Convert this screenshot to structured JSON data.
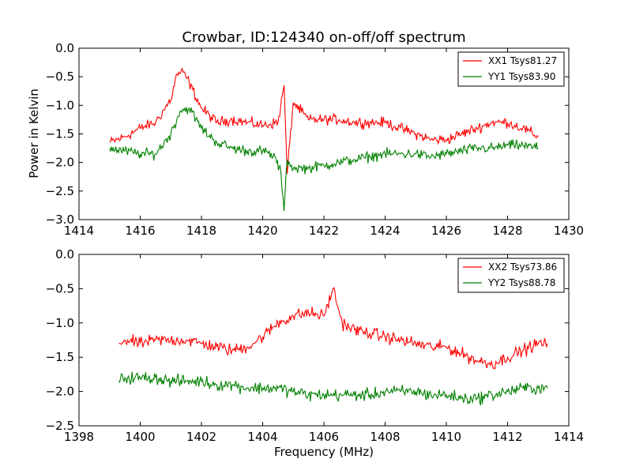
{
  "chart_data": [
    {
      "type": "line",
      "title": "Crowbar, ID:124340 on-off/off spectrum",
      "xlabel": "",
      "ylabel": "Power in Kelvin",
      "xlim": [
        1414,
        1430
      ],
      "ylim": [
        -3.0,
        0.0
      ],
      "x_ticks": [
        "1414",
        "1416",
        "1418",
        "1420",
        "1422",
        "1424",
        "1426",
        "1428",
        "1430"
      ],
      "y_ticks": [
        "0.0",
        "−0.5",
        "−1.0",
        "−1.5",
        "−2.0",
        "−2.5",
        "−3.0"
      ],
      "legend_position": "top-right",
      "grid": false,
      "series": [
        {
          "name": "XX1 Tsys81.27",
          "color": "#ff0000",
          "x": [
            1415.0,
            1415.5,
            1416.0,
            1416.5,
            1417.0,
            1417.2,
            1417.4,
            1417.6,
            1418.0,
            1418.5,
            1419.0,
            1419.5,
            1420.0,
            1420.5,
            1420.7,
            1420.8,
            1421.0,
            1421.5,
            1422.0,
            1422.5,
            1423.0,
            1423.5,
            1424.0,
            1424.5,
            1425.0,
            1425.5,
            1426.0,
            1426.5,
            1427.0,
            1427.5,
            1428.0,
            1428.5,
            1429.0
          ],
          "y": [
            -1.65,
            -1.55,
            -1.4,
            -1.3,
            -0.9,
            -0.45,
            -0.42,
            -0.6,
            -1.05,
            -1.3,
            -1.25,
            -1.3,
            -1.35,
            -1.3,
            -0.65,
            -2.2,
            -0.95,
            -1.25,
            -1.25,
            -1.25,
            -1.3,
            -1.3,
            -1.3,
            -1.4,
            -1.5,
            -1.6,
            -1.6,
            -1.5,
            -1.4,
            -1.3,
            -1.3,
            -1.4,
            -1.55
          ]
        },
        {
          "name": "YY1 Tsys83.90",
          "color": "#008000",
          "x": [
            1415.0,
            1415.5,
            1416.0,
            1416.5,
            1417.0,
            1417.3,
            1417.6,
            1418.0,
            1418.5,
            1419.0,
            1419.5,
            1420.0,
            1420.4,
            1420.6,
            1420.7,
            1420.8,
            1421.0,
            1421.5,
            1422.0,
            1422.5,
            1423.0,
            1423.5,
            1424.0,
            1424.5,
            1425.0,
            1425.5,
            1426.0,
            1426.5,
            1427.0,
            1427.5,
            1428.0,
            1428.5,
            1429.0
          ],
          "y": [
            -1.75,
            -1.8,
            -1.85,
            -1.85,
            -1.5,
            -1.1,
            -1.05,
            -1.4,
            -1.65,
            -1.75,
            -1.8,
            -1.8,
            -1.9,
            -2.2,
            -2.85,
            -1.95,
            -2.1,
            -2.1,
            -2.05,
            -2.0,
            -1.95,
            -1.9,
            -1.85,
            -1.85,
            -1.85,
            -1.9,
            -1.85,
            -1.8,
            -1.75,
            -1.75,
            -1.7,
            -1.7,
            -1.75
          ]
        }
      ]
    },
    {
      "type": "line",
      "title": "",
      "xlabel": "Frequency (MHz)",
      "ylabel": "",
      "xlim": [
        1398,
        1414
      ],
      "ylim": [
        -2.5,
        0.0
      ],
      "x_ticks": [
        "1398",
        "1400",
        "1402",
        "1404",
        "1406",
        "1408",
        "1410",
        "1412",
        "1414"
      ],
      "y_ticks": [
        "0.0",
        "−0.5",
        "−1.0",
        "−1.5",
        "−2.0",
        "−2.5"
      ],
      "legend_position": "top-right",
      "grid": false,
      "series": [
        {
          "name": "XX2 Tsys73.86",
          "color": "#ff0000",
          "x": [
            1399.3,
            1399.5,
            1400.0,
            1400.5,
            1401.0,
            1401.5,
            1402.0,
            1402.5,
            1403.0,
            1403.5,
            1404.0,
            1404.5,
            1405.0,
            1405.5,
            1406.0,
            1406.3,
            1406.6,
            1407.0,
            1407.5,
            1408.0,
            1408.5,
            1409.0,
            1409.5,
            1410.0,
            1410.5,
            1411.0,
            1411.5,
            1412.0,
            1412.5,
            1413.0,
            1413.3
          ],
          "y": [
            -1.3,
            -1.25,
            -1.3,
            -1.25,
            -1.25,
            -1.25,
            -1.3,
            -1.35,
            -1.4,
            -1.35,
            -1.2,
            -1.0,
            -0.9,
            -0.85,
            -0.9,
            -0.5,
            -1.0,
            -1.1,
            -1.15,
            -1.2,
            -1.25,
            -1.3,
            -1.35,
            -1.35,
            -1.45,
            -1.55,
            -1.6,
            -1.5,
            -1.4,
            -1.3,
            -1.3
          ]
        },
        {
          "name": "YY2 Tsys88.78",
          "color": "#008000",
          "x": [
            1399.3,
            1399.5,
            1400.0,
            1400.5,
            1401.0,
            1401.5,
            1402.0,
            1402.5,
            1403.0,
            1403.5,
            1404.0,
            1404.5,
            1405.0,
            1405.5,
            1406.0,
            1406.5,
            1407.0,
            1407.5,
            1408.0,
            1408.5,
            1409.0,
            1409.5,
            1410.0,
            1410.5,
            1411.0,
            1411.5,
            1412.0,
            1412.5,
            1413.0,
            1413.3
          ],
          "y": [
            -1.85,
            -1.8,
            -1.8,
            -1.8,
            -1.85,
            -1.85,
            -1.85,
            -1.9,
            -1.9,
            -1.95,
            -1.95,
            -1.95,
            -2.0,
            -2.05,
            -2.05,
            -2.05,
            -2.05,
            -2.05,
            -2.0,
            -2.0,
            -2.0,
            -2.05,
            -2.05,
            -2.1,
            -2.1,
            -2.05,
            -2.0,
            -1.95,
            -1.95,
            -1.95
          ]
        }
      ]
    }
  ]
}
